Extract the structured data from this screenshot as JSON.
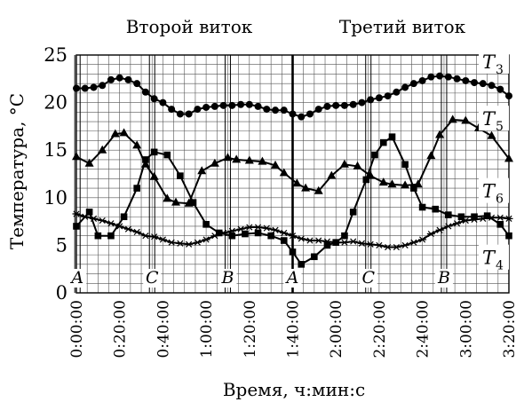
{
  "chart_data": {
    "type": "line",
    "headers": {
      "left": "Второй виток",
      "right": "Третий виток"
    },
    "xlabel": "Время, ч:мин:с",
    "ylabel": "Температура, °С",
    "xlim": [
      0,
      200
    ],
    "ylim": [
      0,
      25
    ],
    "x_ticks": [
      {
        "value": 0,
        "label": "0:00:00"
      },
      {
        "value": 20,
        "label": "0:20:00"
      },
      {
        "value": 40,
        "label": "0:40:00"
      },
      {
        "value": 60,
        "label": "1:00:00"
      },
      {
        "value": 80,
        "label": "1:20:00"
      },
      {
        "value": 100,
        "label": "1:40:00"
      },
      {
        "value": 120,
        "label": "2:00:00"
      },
      {
        "value": 140,
        "label": "2:20:00"
      },
      {
        "value": 160,
        "label": "2:40:00"
      },
      {
        "value": 180,
        "label": "3:00:00"
      },
      {
        "value": 200,
        "label": "3:20:00"
      }
    ],
    "y_ticks": [
      0,
      5,
      10,
      15,
      20,
      25
    ],
    "grid": true,
    "phases": [
      {
        "label": "A",
        "x": 0.5
      },
      {
        "label": "C",
        "x": 35
      },
      {
        "label": "B",
        "x": 70
      },
      {
        "label": "A",
        "x": 100
      },
      {
        "label": "C",
        "x": 135
      },
      {
        "label": "B",
        "x": 170
      }
    ],
    "series": [
      {
        "name": "T",
        "sub": "3",
        "marker": "circle",
        "x": [
          0,
          4,
          8,
          12,
          16,
          20,
          24,
          28,
          32,
          36,
          40,
          44,
          48,
          52,
          56,
          60,
          64,
          68,
          72,
          76,
          80,
          84,
          88,
          92,
          96,
          100,
          104,
          108,
          112,
          116,
          120,
          124,
          128,
          132,
          136,
          140,
          144,
          148,
          152,
          156,
          160,
          164,
          168,
          172,
          176,
          180,
          184,
          188,
          192,
          196,
          200
        ],
        "y": [
          21.5,
          21.5,
          21.6,
          21.8,
          22.4,
          22.6,
          22.4,
          22.0,
          21.1,
          20.4,
          20.0,
          19.3,
          18.8,
          18.8,
          19.3,
          19.5,
          19.6,
          19.7,
          19.7,
          19.8,
          19.8,
          19.6,
          19.3,
          19.2,
          19.2,
          18.8,
          18.5,
          18.8,
          19.3,
          19.6,
          19.7,
          19.7,
          19.8,
          20.0,
          20.3,
          20.5,
          20.7,
          21.1,
          21.6,
          22.0,
          22.3,
          22.7,
          22.8,
          22.7,
          22.5,
          22.3,
          22.1,
          22.0,
          21.8,
          21.4,
          20.7
        ]
      },
      {
        "name": "T",
        "sub": "5",
        "marker": "triangle",
        "x": [
          0,
          6,
          12,
          18,
          22,
          28,
          32,
          36,
          42,
          46,
          52,
          58,
          64,
          70,
          74,
          80,
          86,
          92,
          96,
          102,
          106,
          112,
          118,
          124,
          130,
          136,
          142,
          146,
          152,
          158,
          164,
          168,
          174,
          180,
          186,
          192,
          200
        ],
        "y": [
          14.3,
          13.6,
          15.0,
          16.7,
          16.8,
          15.5,
          13.5,
          12.2,
          9.9,
          9.5,
          9.4,
          12.8,
          13.6,
          14.2,
          14.0,
          13.9,
          13.8,
          13.4,
          12.6,
          11.5,
          11.0,
          10.7,
          12.3,
          13.5,
          13.3,
          12.3,
          11.6,
          11.4,
          11.3,
          11.4,
          14.4,
          16.6,
          18.2,
          18.1,
          17.3,
          16.5,
          14.1
        ]
      },
      {
        "name": "T",
        "sub": "6",
        "marker": "square",
        "x": [
          0,
          6,
          10,
          16,
          22,
          28,
          32,
          36,
          42,
          48,
          54,
          60,
          66,
          72,
          78,
          84,
          90,
          96,
          100,
          104,
          110,
          116,
          120,
          124,
          128,
          134,
          138,
          142,
          146,
          152,
          156,
          160,
          166,
          172,
          178,
          184,
          190,
          196,
          200
        ],
        "y": [
          7.0,
          8.5,
          6.0,
          6.0,
          8.0,
          11.0,
          14.0,
          14.8,
          14.5,
          12.3,
          9.5,
          7.2,
          6.3,
          6.0,
          6.2,
          6.3,
          6.0,
          5.5,
          4.3,
          3.0,
          3.8,
          5.0,
          5.3,
          6.0,
          8.5,
          11.9,
          14.5,
          15.8,
          16.4,
          13.5,
          11.0,
          9.0,
          8.8,
          8.2,
          8.0,
          8.0,
          8.1,
          7.2,
          6.0
        ]
      },
      {
        "name": "T",
        "sub": "4",
        "marker": "star",
        "x": [
          0,
          4,
          8,
          12,
          16,
          20,
          24,
          28,
          32,
          36,
          40,
          44,
          48,
          52,
          56,
          60,
          64,
          68,
          72,
          76,
          80,
          84,
          88,
          92,
          96,
          100,
          104,
          108,
          112,
          116,
          120,
          124,
          128,
          132,
          136,
          140,
          144,
          148,
          152,
          156,
          160,
          164,
          168,
          172,
          176,
          180,
          184,
          188,
          192,
          196,
          200
        ],
        "y": [
          8.3,
          8.0,
          7.8,
          7.6,
          7.3,
          7.0,
          6.7,
          6.4,
          6.0,
          5.9,
          5.6,
          5.3,
          5.2,
          5.1,
          5.3,
          5.6,
          6.0,
          6.3,
          6.5,
          6.7,
          6.9,
          6.9,
          6.8,
          6.6,
          6.3,
          6.0,
          5.7,
          5.5,
          5.5,
          5.4,
          5.3,
          5.3,
          5.4,
          5.2,
          5.1,
          5.0,
          4.8,
          4.8,
          5.0,
          5.3,
          5.6,
          6.2,
          6.6,
          7.0,
          7.3,
          7.6,
          7.7,
          7.8,
          7.9,
          7.9,
          7.8
        ]
      }
    ]
  }
}
